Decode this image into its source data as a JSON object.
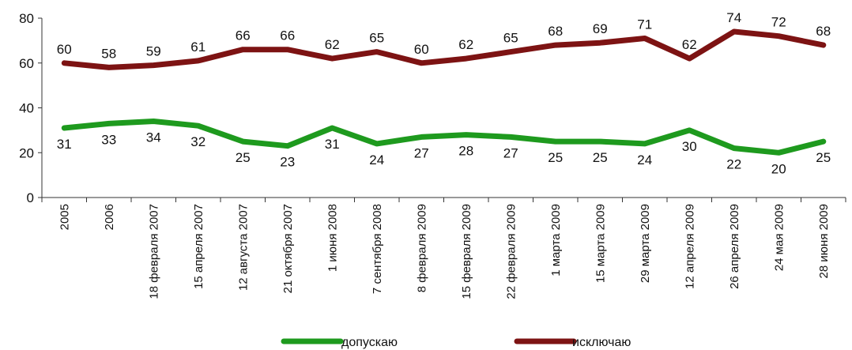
{
  "chart_data": {
    "type": "line",
    "categories": [
      "2005",
      "2006",
      "18 февраля 2007",
      "15 апреля 2007",
      "12 августа 2007",
      "21 октября 2007",
      "1 июня 2008",
      "7 сентября 2008",
      "8 февраля 2009",
      "15 февраля 2009",
      "22 февраля 2009",
      "1 марта 2009",
      "15 марта 2009",
      "29 марта 2009",
      "12 апреля 2009",
      "26 апреля 2009",
      "24 мая 2009",
      "28 июня 2009"
    ],
    "series": [
      {
        "name": "допускаю",
        "color": "#1e9a1e",
        "values": [
          31,
          33,
          34,
          32,
          25,
          23,
          31,
          24,
          27,
          28,
          27,
          25,
          25,
          24,
          30,
          22,
          20,
          25
        ]
      },
      {
        "name": "исключаю",
        "color": "#7d1313",
        "values": [
          60,
          58,
          59,
          61,
          66,
          66,
          62,
          65,
          60,
          62,
          65,
          68,
          69,
          71,
          62,
          74,
          72,
          68
        ]
      }
    ],
    "ylim": [
      0,
      80
    ],
    "yticks": [
      0,
      20,
      40,
      60,
      80
    ],
    "grid": false,
    "legend": "bottom"
  }
}
